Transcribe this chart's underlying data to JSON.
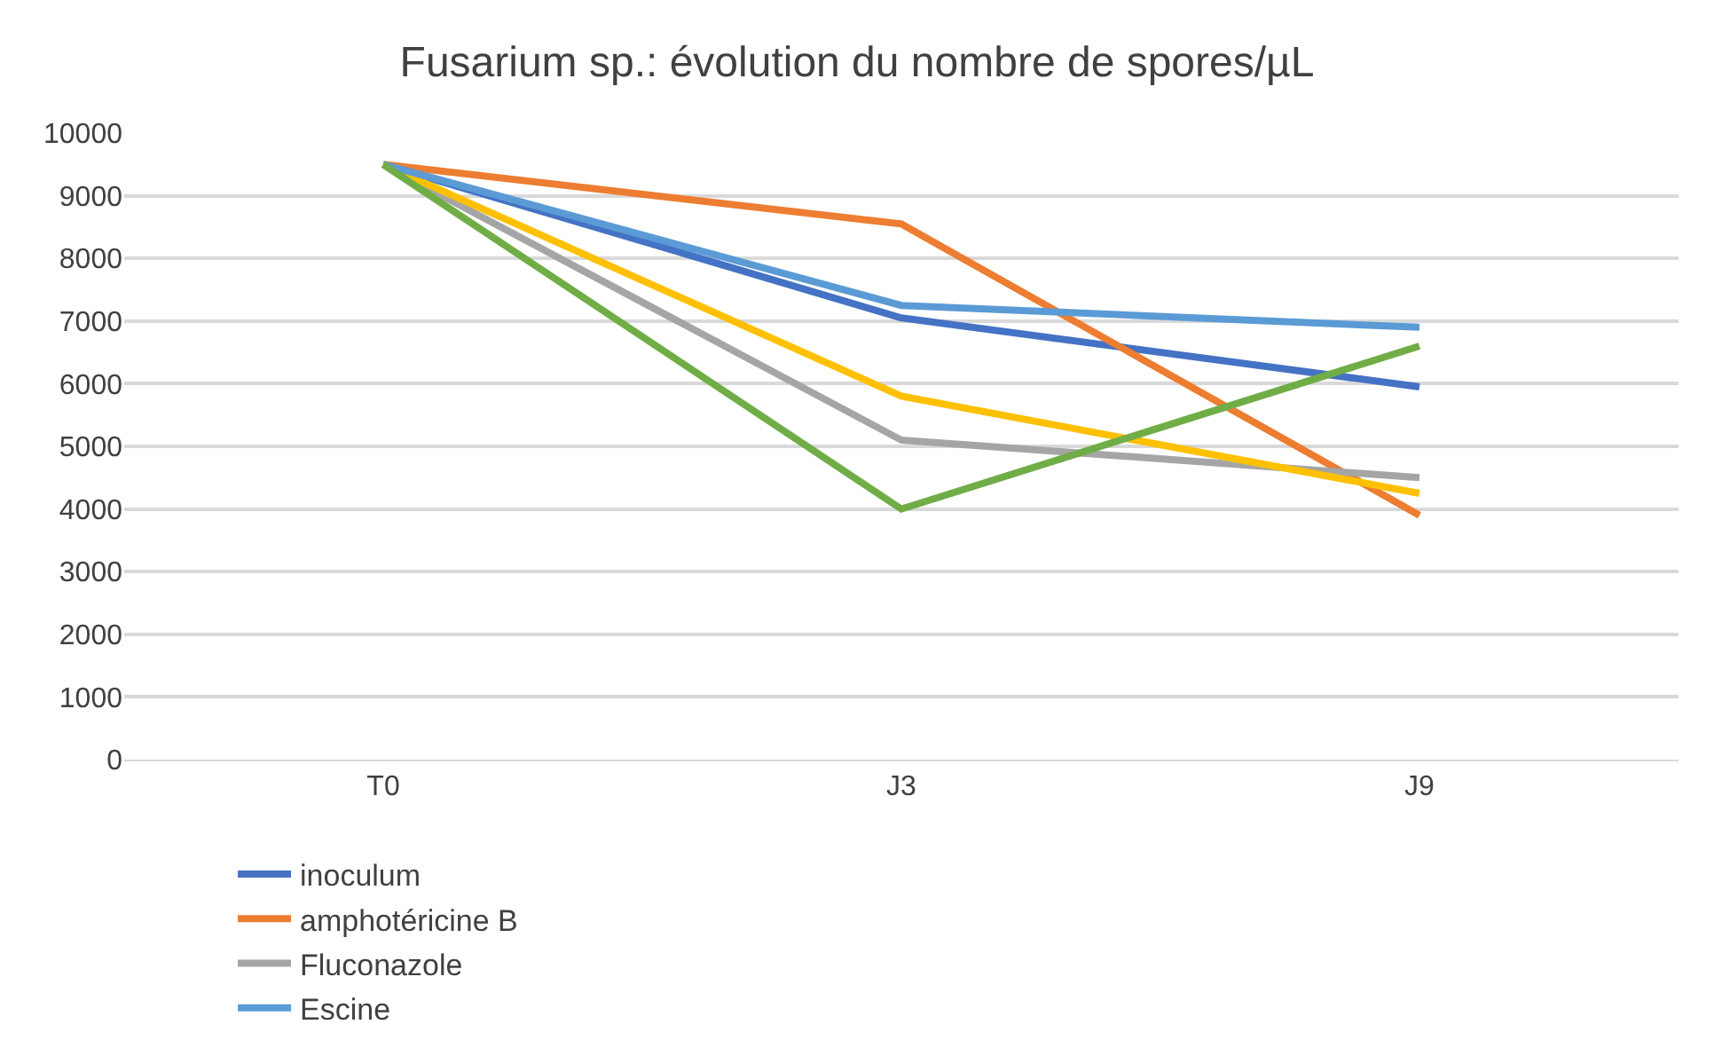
{
  "chart_data": {
    "type": "line",
    "title": "Fusarium sp.: évolution du nombre de spores/µL",
    "categories": [
      "T0",
      "J3",
      "J9"
    ],
    "series": [
      {
        "name": "inoculum",
        "color": "#4472c4",
        "values": [
          9500,
          7050,
          5950
        ]
      },
      {
        "name": "amphotéricine B",
        "color": "#ed7d31",
        "values": [
          9500,
          8550,
          3900
        ]
      },
      {
        "name": "Fluconazole",
        "color": "#a5a5a5",
        "values": [
          9500,
          5100,
          4500
        ]
      },
      {
        "color": "#ffc000",
        "values": [
          9500,
          5800,
          4250
        ]
      },
      {
        "name": "Escine",
        "color": "#5b9bd5",
        "values": [
          9500,
          7250,
          6900
        ]
      },
      {
        "color": "#70ad47",
        "values": [
          9500,
          4000,
          6600
        ]
      }
    ],
    "ylim": [
      0,
      10000
    ],
    "yticks": [
      0,
      1000,
      2000,
      3000,
      4000,
      5000,
      6000,
      7000,
      8000,
      9000,
      10000
    ],
    "grid": "y",
    "legend": "bottom",
    "marker": "none",
    "line_style": "solid"
  }
}
